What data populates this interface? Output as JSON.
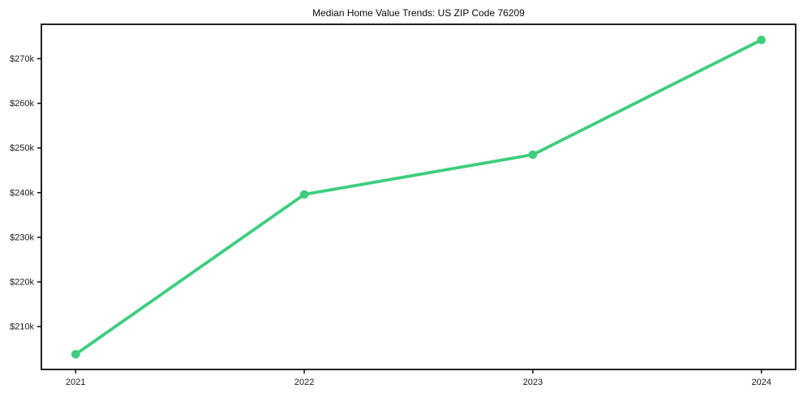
{
  "chart_data": {
    "type": "line",
    "title": "Median Home Value Trends: US ZIP Code 76209",
    "x": [
      2021,
      2022,
      2023,
      2024
    ],
    "series": [
      {
        "name": "Median Home Value",
        "values": [
          203800,
          239600,
          248500,
          274200
        ]
      }
    ],
    "x_tick_values": [
      2021,
      2022,
      2023,
      2024
    ],
    "x_tick_labels": [
      "2021",
      "2022",
      "2023",
      "2024"
    ],
    "y_tick_values": [
      210000,
      220000,
      230000,
      240000,
      250000,
      260000,
      270000
    ],
    "y_tick_labels": [
      "$210k",
      "$220k",
      "$230k",
      "$240k",
      "$250k",
      "$260k",
      "$270k"
    ],
    "xlabel": "",
    "ylabel": "",
    "xlim": [
      2020.85,
      2024.15
    ],
    "ylim": [
      200400,
      277700
    ],
    "grid": false,
    "legend_position": "none",
    "line_color": "#3ecd7e",
    "marker_color": "#3ecd7e",
    "spine_color": "#0a0a0a",
    "background_color": "#ffffff"
  }
}
